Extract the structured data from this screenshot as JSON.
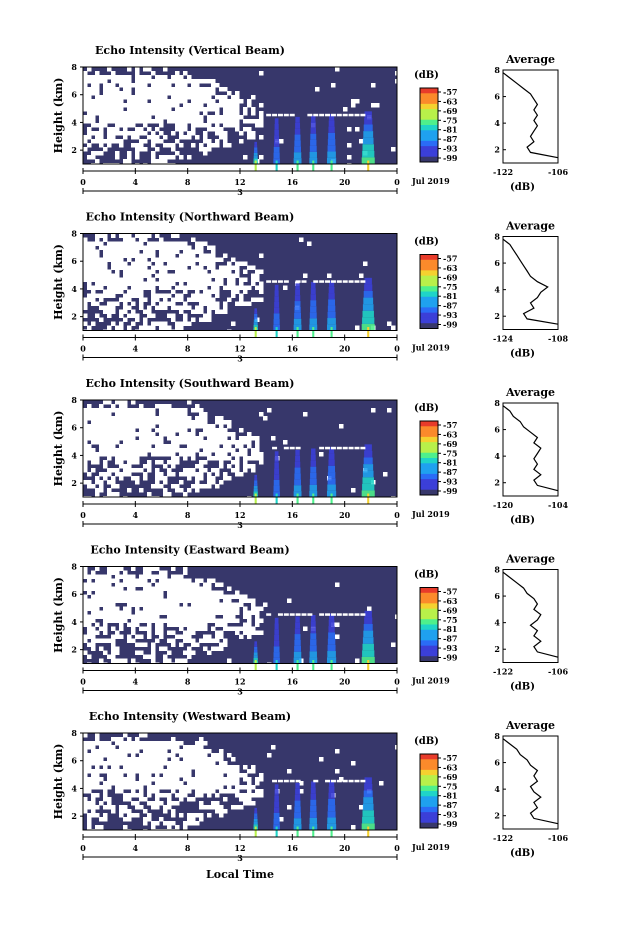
{
  "figure": {
    "x_axis_label": "Local Time",
    "date_label": "Jul 2019",
    "colorbar_unit": "(dB)",
    "average_xlabel": "(dB)",
    "colorscale": [
      "#37376b",
      "#3b3fd8",
      "#2a6cf6",
      "#1fa1ef",
      "#1fd4c8",
      "#4ef08c",
      "#b8f04a",
      "#f5d12f",
      "#fb8a2b",
      "#e83b2a"
    ]
  },
  "chart_data": [
    {
      "type": "heatmap",
      "title": "Echo Intensity (Vertical Beam)",
      "ylabel": "Height (km)",
      "xlim": [
        0,
        24
      ],
      "ylim": [
        1,
        8
      ],
      "x_ticks": [
        "0",
        "4",
        "8",
        "12",
        "16",
        "20",
        "0"
      ],
      "x_tick_values": [
        0,
        4,
        8,
        12,
        16,
        20,
        24
      ],
      "y_ticks": [
        "2",
        "4",
        "6",
        "8"
      ],
      "y_tick_values": [
        2,
        4,
        6,
        8
      ],
      "day_marker": "3",
      "colorbar_ticks": [
        "-57",
        "-63",
        "-69",
        "-75",
        "-81",
        "-87",
        "-93",
        "-99"
      ],
      "average": {
        "title": "Average",
        "xlabel": "(dB)",
        "x_ticks": [
          "-122",
          "-106"
        ],
        "x_tick_values": [
          -122,
          -106
        ],
        "xlim": [
          -122,
          -106
        ],
        "y_ticks": [
          "2",
          "4",
          "6",
          "8"
        ],
        "y_tick_values": [
          2,
          4,
          6,
          8
        ],
        "ylim": [
          1,
          8
        ],
        "heights": [
          1.4,
          1.8,
          2.2,
          2.6,
          3.0,
          3.4,
          3.8,
          4.2,
          4.6,
          5.0,
          5.4,
          5.8,
          6.2,
          6.6,
          7.0,
          7.4,
          7.8
        ],
        "values": [
          -106,
          -114,
          -115,
          -113,
          -114,
          -113,
          -112,
          -113,
          -112,
          -113,
          -112,
          -113,
          -114,
          -116,
          -118,
          -120,
          -122
        ]
      }
    },
    {
      "type": "heatmap",
      "title": "Echo Intensity (Northward Beam)",
      "ylabel": "Height (km)",
      "xlim": [
        0,
        24
      ],
      "ylim": [
        1,
        8
      ],
      "x_ticks": [
        "0",
        "4",
        "8",
        "12",
        "16",
        "20",
        "0"
      ],
      "x_tick_values": [
        0,
        4,
        8,
        12,
        16,
        20,
        24
      ],
      "y_ticks": [
        "2",
        "4",
        "6",
        "8"
      ],
      "y_tick_values": [
        2,
        4,
        6,
        8
      ],
      "day_marker": "3",
      "colorbar_ticks": [
        "-57",
        "-63",
        "-69",
        "-75",
        "-81",
        "-87",
        "-93",
        "-99"
      ],
      "average": {
        "title": "Average",
        "xlabel": "(dB)",
        "x_ticks": [
          "-124",
          "-108"
        ],
        "x_tick_values": [
          -124,
          -108
        ],
        "xlim": [
          -124,
          -108
        ],
        "y_ticks": [
          "2",
          "4",
          "6",
          "8"
        ],
        "y_tick_values": [
          2,
          4,
          6,
          8
        ],
        "ylim": [
          1,
          8
        ],
        "heights": [
          1.4,
          1.8,
          2.2,
          2.6,
          3.0,
          3.4,
          3.8,
          4.2,
          4.6,
          5.0,
          5.4,
          5.8,
          6.2,
          6.6,
          7.0,
          7.4,
          7.8
        ],
        "values": [
          -108,
          -117,
          -118,
          -115,
          -116,
          -114,
          -113,
          -111,
          -114,
          -116,
          -117,
          -118,
          -119,
          -120,
          -121,
          -122,
          -124
        ]
      }
    },
    {
      "type": "heatmap",
      "title": "Echo Intensity (Southward Beam)",
      "ylabel": "Height (km)",
      "xlim": [
        0,
        24
      ],
      "ylim": [
        1,
        8
      ],
      "x_ticks": [
        "0",
        "4",
        "8",
        "12",
        "16",
        "20",
        "0"
      ],
      "x_tick_values": [
        0,
        4,
        8,
        12,
        16,
        20,
        24
      ],
      "y_ticks": [
        "2",
        "4",
        "6",
        "8"
      ],
      "y_tick_values": [
        2,
        4,
        6,
        8
      ],
      "day_marker": "3",
      "colorbar_ticks": [
        "-57",
        "-63",
        "-69",
        "-75",
        "-81",
        "-87",
        "-93",
        "-99"
      ],
      "average": {
        "title": "Average",
        "xlabel": "(dB)",
        "x_ticks": [
          "-120",
          "-104"
        ],
        "x_tick_values": [
          -120,
          -104
        ],
        "xlim": [
          -120,
          -104
        ],
        "y_ticks": [
          "2",
          "4",
          "6",
          "8"
        ],
        "y_tick_values": [
          2,
          4,
          6,
          8
        ],
        "ylim": [
          1,
          8
        ],
        "heights": [
          1.4,
          1.8,
          2.2,
          2.6,
          3.0,
          3.4,
          3.8,
          4.2,
          4.6,
          5.0,
          5.4,
          5.8,
          6.2,
          6.6,
          7.0,
          7.4,
          7.8
        ],
        "values": [
          -104,
          -110,
          -111,
          -109,
          -111,
          -110,
          -111,
          -110,
          -109,
          -111,
          -110,
          -112,
          -114,
          -115,
          -117,
          -118,
          -120
        ]
      }
    },
    {
      "type": "heatmap",
      "title": "Echo Intensity (Eastward Beam)",
      "ylabel": "Height (km)",
      "xlim": [
        0,
        24
      ],
      "ylim": [
        1,
        8
      ],
      "x_ticks": [
        "0",
        "4",
        "8",
        "12",
        "16",
        "20",
        "0"
      ],
      "x_tick_values": [
        0,
        4,
        8,
        12,
        16,
        20,
        24
      ],
      "y_ticks": [
        "2",
        "4",
        "6",
        "8"
      ],
      "y_tick_values": [
        2,
        4,
        6,
        8
      ],
      "day_marker": "3",
      "colorbar_ticks": [
        "-57",
        "-63",
        "-69",
        "-75",
        "-81",
        "-87",
        "-93",
        "-99"
      ],
      "average": {
        "title": "Average",
        "xlabel": "(dB)",
        "x_ticks": [
          "-122",
          "-106"
        ],
        "x_tick_values": [
          -122,
          -106
        ],
        "xlim": [
          -122,
          -106
        ],
        "y_ticks": [
          "2",
          "4",
          "6",
          "8"
        ],
        "y_tick_values": [
          2,
          4,
          6,
          8
        ],
        "ylim": [
          1,
          8
        ],
        "heights": [
          1.4,
          1.8,
          2.2,
          2.6,
          3.0,
          3.4,
          3.8,
          4.2,
          4.6,
          5.0,
          5.4,
          5.8,
          6.2,
          6.6,
          7.0,
          7.4,
          7.8
        ],
        "values": [
          -106,
          -112,
          -113,
          -111,
          -113,
          -112,
          -114,
          -112,
          -111,
          -113,
          -112,
          -113,
          -115,
          -116,
          -118,
          -120,
          -122
        ]
      }
    },
    {
      "type": "heatmap",
      "title": "Echo Intensity (Westward Beam)",
      "ylabel": "Height (km)",
      "xlim": [
        0,
        24
      ],
      "ylim": [
        1,
        8
      ],
      "x_ticks": [
        "0",
        "4",
        "8",
        "12",
        "16",
        "20",
        "0"
      ],
      "x_tick_values": [
        0,
        4,
        8,
        12,
        16,
        20,
        24
      ],
      "y_ticks": [
        "2",
        "4",
        "6",
        "8"
      ],
      "y_tick_values": [
        2,
        4,
        6,
        8
      ],
      "day_marker": "3",
      "colorbar_ticks": [
        "-57",
        "-63",
        "-69",
        "-75",
        "-81",
        "-87",
        "-93",
        "-99"
      ],
      "average": {
        "title": "Average",
        "xlabel": "(dB)",
        "x_ticks": [
          "-122",
          "-106"
        ],
        "x_tick_values": [
          -122,
          -106
        ],
        "xlim": [
          -122,
          -106
        ],
        "y_ticks": [
          "2",
          "4",
          "6",
          "8"
        ],
        "y_tick_values": [
          2,
          4,
          6,
          8
        ],
        "ylim": [
          1,
          8
        ],
        "heights": [
          1.4,
          1.8,
          2.2,
          2.6,
          3.0,
          3.4,
          3.8,
          4.2,
          4.6,
          5.0,
          5.4,
          5.8,
          6.2,
          6.6,
          7.0,
          7.4,
          7.8
        ],
        "values": [
          -106,
          -113,
          -114,
          -112,
          -113,
          -111,
          -113,
          -114,
          -112,
          -113,
          -112,
          -114,
          -115,
          -117,
          -118,
          -120,
          -122
        ]
      }
    }
  ]
}
